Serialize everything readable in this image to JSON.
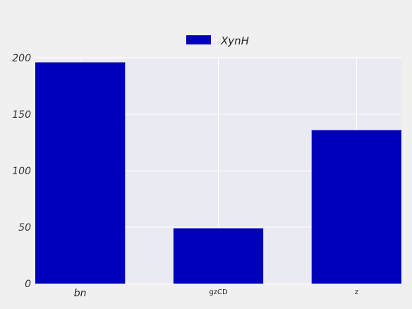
{
  "chart_data": {
    "type": "bar",
    "categories": [
      "bn",
      "gzCD",
      "z"
    ],
    "series": [
      {
        "name": "XynH",
        "values": [
          196,
          49,
          136
        ]
      }
    ],
    "title": "",
    "xlabel": "",
    "ylabel": "",
    "ylim": [
      0,
      200
    ],
    "yticks": [
      0,
      50,
      100,
      150,
      200
    ],
    "grid": true,
    "legend_position": "top-center",
    "colors": {
      "bar": "#0000bb",
      "plot_bg": "#eaeaf2",
      "figure_bg": "#f0f0f0",
      "grid": "#ffffff"
    }
  }
}
